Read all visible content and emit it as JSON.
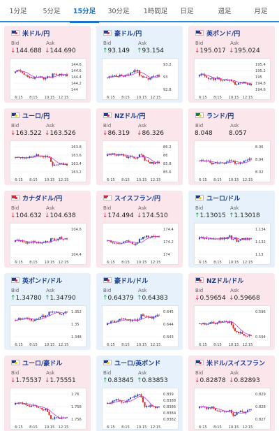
{
  "tabs": [
    {
      "label": "1分足",
      "active": false
    },
    {
      "label": "5分足",
      "active": false
    },
    {
      "label": "15分足",
      "active": true
    },
    {
      "label": "30分足",
      "active": false
    },
    {
      "label": "1時間足",
      "active": false
    },
    {
      "label": "日足",
      "active": false
    },
    {
      "label": "週足",
      "active": false
    },
    {
      "label": "月足",
      "active": false
    }
  ],
  "labels": {
    "bid": "Bid",
    "ask": "Ask"
  },
  "colors": {
    "up_candle": "#1f3fbf",
    "down_candle": "#e02424",
    "ma_line": "#c23bd6",
    "down_arrow": "#d2283a",
    "up_arrow": "#1a9a3a",
    "card_pink": "#fbe6ec",
    "card_blue": "#e6f1fb",
    "tab_accent": "#1a73c8"
  },
  "cards": [
    {
      "pair": "米ドル/円",
      "flag": "us-flag",
      "bg": "pink",
      "bid_dir": "down",
      "bid": "144.688",
      "ask_dir": "down",
      "ask": "144.690",
      "chart_data": {
        "type": "candlestick",
        "x_ticks": [
          "6:15",
          "8:15",
          "10:15",
          "12:15"
        ],
        "y_ticks": [
          "144.6",
          "144.6",
          "144.4",
          "144.2",
          "144"
        ],
        "ylim": [
          143.9,
          144.75
        ]
      }
    },
    {
      "pair": "豪ドル/円",
      "flag": "au-flag",
      "bg": "blue",
      "bid_dir": "up",
      "bid": "93.149",
      "ask_dir": "up",
      "ask": "93.154",
      "chart_data": {
        "type": "candlestick",
        "x_ticks": [
          "6:15",
          "8:15",
          "10:15",
          "12:15"
        ],
        "y_ticks": [
          "93.2",
          "93",
          "92.8"
        ],
        "ylim": [
          92.75,
          93.25
        ]
      }
    },
    {
      "pair": "英ポンド/円",
      "flag": "uk-flag",
      "bg": "pink",
      "bid_dir": "down",
      "bid": "195.017",
      "ask_dir": "down",
      "ask": "195.024",
      "chart_data": {
        "type": "candlestick",
        "x_ticks": [
          "6:15",
          "8:15",
          "10:15",
          "12:15"
        ],
        "y_ticks": [
          "195.4",
          "195.2",
          "195",
          "194.8",
          "194.6"
        ],
        "ylim": [
          194.5,
          195.5
        ]
      }
    },
    {
      "pair": "ユーロ/円",
      "flag": "eu-flag",
      "bg": "pink",
      "bid_dir": "down",
      "bid": "163.522",
      "ask_dir": "down",
      "ask": "163.526",
      "chart_data": {
        "type": "candlestick",
        "x_ticks": [
          "6:15",
          "8:15",
          "10:15",
          "12:15"
        ],
        "y_ticks": [
          "163.8",
          "163.6",
          "163.4",
          "163.2"
        ],
        "ylim": [
          163.1,
          163.9
        ]
      }
    },
    {
      "pair": "NZドル/円",
      "flag": "nz-flag",
      "bg": "pink",
      "bid_dir": "down",
      "bid": "86.319",
      "ask_dir": "down",
      "ask": "86.326",
      "chart_data": {
        "type": "candlestick",
        "x_ticks": [
          "6:15",
          "8:15",
          "10:15",
          "12:15"
        ],
        "y_ticks": [
          "86.2",
          "86",
          "85.8",
          "85.6"
        ],
        "ylim": [
          85.5,
          86.3
        ]
      }
    },
    {
      "pair": "ランド/円",
      "flag": "za-flag",
      "bg": "pink",
      "bid_dir": "none",
      "bid": "8.048",
      "ask_dir": "none",
      "ask": "8.057",
      "chart_data": {
        "type": "candlestick",
        "x_ticks": [
          "6:15",
          "8:15",
          "10:15",
          "12:15"
        ],
        "y_ticks": [
          "8.06",
          "8.04",
          "8.02"
        ],
        "ylim": [
          8.01,
          8.07
        ]
      }
    },
    {
      "pair": "カナダドル/円",
      "flag": "ca-flag",
      "bg": "pink",
      "bid_dir": "down",
      "bid": "104.632",
      "ask_dir": "down",
      "ask": "104.638",
      "chart_data": {
        "type": "candlestick",
        "x_ticks": [
          "6:15",
          "8:15",
          "10:15",
          "12:15"
        ],
        "y_ticks": [
          "104.6",
          "104.4"
        ],
        "ylim": [
          104.25,
          104.75
        ]
      }
    },
    {
      "pair": "スイスフラン/円",
      "flag": "ch-flag",
      "bg": "pink",
      "bid_dir": "down",
      "bid": "174.494",
      "ask_dir": "down",
      "ask": "174.510",
      "chart_data": {
        "type": "candlestick",
        "x_ticks": [
          "6:15",
          "8:15",
          "10:15",
          "12:15"
        ],
        "y_ticks": [
          "174.4",
          "174.2",
          "174"
        ],
        "ylim": [
          173.9,
          174.55
        ]
      }
    },
    {
      "pair": "ユーロ/ドル",
      "flag": "eu-flag",
      "bg": "blue",
      "bid_dir": "up",
      "bid": "1.13015",
      "ask_dir": "up",
      "ask": "1.13018",
      "chart_data": {
        "type": "candlestick",
        "x_ticks": [
          "6:15",
          "8:15",
          "10:15",
          "12:15"
        ],
        "y_ticks": [
          "1.134",
          "1.132",
          "1.13"
        ],
        "ylim": [
          1.1295,
          1.1345
        ]
      }
    },
    {
      "pair": "英ポンド/ドル",
      "flag": "uk-flag",
      "bg": "blue",
      "bid_dir": "up",
      "bid": "1.34780",
      "ask_dir": "up",
      "ask": "1.34790",
      "chart_data": {
        "type": "candlestick",
        "x_ticks": [
          "6:15",
          "8:15",
          "10:15",
          "12:15"
        ],
        "y_ticks": [
          "1.352",
          "1.35",
          "1.348"
        ],
        "ylim": [
          1.3475,
          1.353
        ]
      }
    },
    {
      "pair": "豪ドル/ドル",
      "flag": "au-flag",
      "bg": "blue",
      "bid_dir": "up",
      "bid": "0.64379",
      "ask_dir": "up",
      "ask": "0.64383",
      "chart_data": {
        "type": "candlestick",
        "x_ticks": [
          "6:15",
          "8:15",
          "10:15",
          "12:15"
        ],
        "y_ticks": [
          "0.645",
          "0.644",
          "0.643"
        ],
        "ylim": [
          0.6425,
          0.6455
        ]
      }
    },
    {
      "pair": "NZドル/ドル",
      "flag": "nz-flag",
      "bg": "pink",
      "bid_dir": "down",
      "bid": "0.59654",
      "ask_dir": "down",
      "ask": "0.59668",
      "chart_data": {
        "type": "candlestick",
        "x_ticks": [
          "6:15",
          "8:15",
          "10:15",
          "12:15"
        ],
        "y_ticks": [
          "0.596",
          "0.594"
        ],
        "ylim": [
          0.5925,
          0.5975
        ]
      }
    },
    {
      "pair": "ユーロ/豪ドル",
      "flag": "eu-flag",
      "bg": "pink",
      "bid_dir": "down",
      "bid": "1.75537",
      "ask_dir": "down",
      "ask": "1.75551",
      "chart_data": {
        "type": "candlestick",
        "x_ticks": [
          "6:15",
          "8:15",
          "10:15",
          "12:15"
        ],
        "y_ticks": [
          "1.76",
          "1.758",
          "1.756"
        ],
        "ylim": [
          1.755,
          1.7615
        ]
      }
    },
    {
      "pair": "ユーロ/英ポンド",
      "flag": "eu-flag",
      "bg": "blue",
      "bid_dir": "up",
      "bid": "0.83845",
      "ask_dir": "up",
      "ask": "0.83853",
      "chart_data": {
        "type": "candlestick",
        "x_ticks": [
          "6:15",
          "8:15",
          "10:15",
          "12:15"
        ],
        "y_ticks": [
          "0.839",
          "0.8388",
          "0.8386",
          "0.8384",
          "0.8382"
        ],
        "ylim": [
          0.8381,
          0.8391
        ]
      }
    },
    {
      "pair": "米ドル/スイスフラン",
      "flag": "us-flag",
      "bg": "pink",
      "bid_dir": "down",
      "bid": "0.82878",
      "ask_dir": "down",
      "ask": "0.82893",
      "chart_data": {
        "type": "candlestick",
        "x_ticks": [
          "6:15",
          "8:15",
          "10:15",
          "12:15"
        ],
        "y_ticks": [
          "0.829",
          "0.828",
          "0.827"
        ],
        "ylim": [
          0.8263,
          0.8295
        ]
      }
    }
  ]
}
